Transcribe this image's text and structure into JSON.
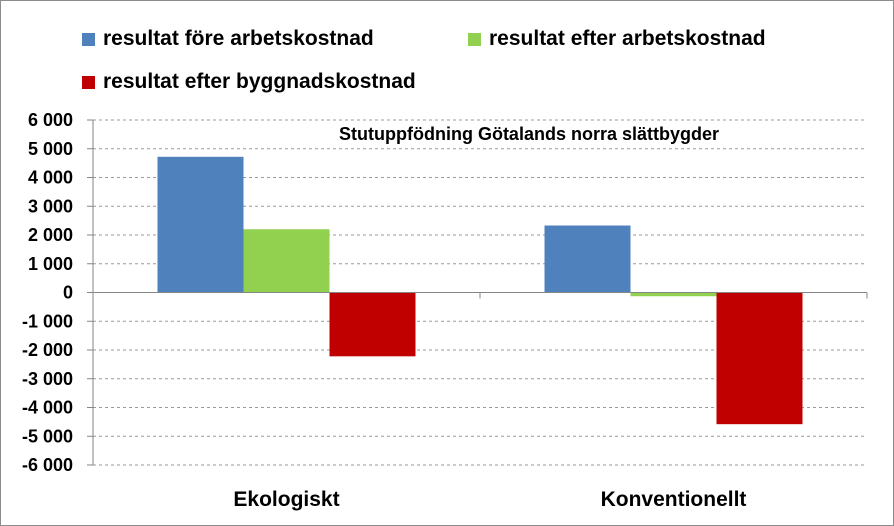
{
  "chart_data": {
    "type": "bar",
    "title": "Stutuppfödning Götalands norra slättbygder",
    "categories": [
      "Ekologiskt",
      "Konventionellt"
    ],
    "series": [
      {
        "name": "resultat före arbetskostnad",
        "color": "#4F81BD",
        "values": [
          4720,
          2330
        ]
      },
      {
        "name": "resultat efter arbetskostnad",
        "color": "#92D050",
        "values": [
          2200,
          -130
        ]
      },
      {
        "name": "resultat efter byggnadskostnad",
        "color": "#C00000",
        "values": [
          -2220,
          -4580
        ]
      }
    ],
    "ylim": [
      -6000,
      6000
    ],
    "yticks": [
      6000,
      5000,
      4000,
      3000,
      2000,
      1000,
      0,
      -1000,
      -2000,
      -3000,
      -4000,
      -5000,
      -6000
    ],
    "ytick_labels": [
      "6 000",
      "5 000",
      "4 000",
      "3 000",
      "2 000",
      "1 000",
      "0",
      "-1 000",
      "-2 000",
      "-3 000",
      "-4 000",
      "-5 000",
      "-6 000"
    ],
    "grid": true,
    "legend": "top",
    "xlabel": "",
    "ylabel": ""
  }
}
